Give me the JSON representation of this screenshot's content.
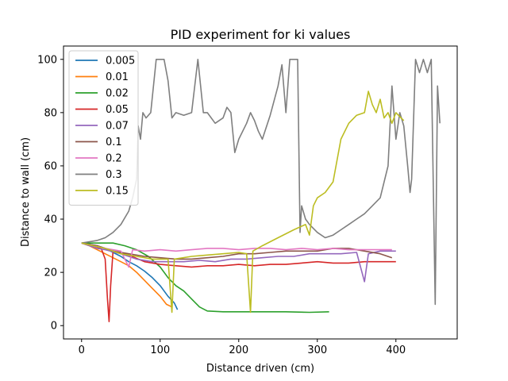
{
  "chart_data": {
    "type": "line",
    "title": "PID experiment for ki values",
    "xlabel": "Distance driven (cm)",
    "ylabel": "Distance to wall (cm)",
    "xlim": [
      -23,
      478
    ],
    "ylim": [
      -5,
      105
    ],
    "xticks": [
      0,
      100,
      200,
      300,
      400
    ],
    "yticks": [
      0,
      20,
      40,
      60,
      80,
      100
    ],
    "grid": false,
    "legend_position": "top-left",
    "series": [
      {
        "name": "0.005",
        "color": "#1f77b4",
        "points": [
          [
            0,
            31
          ],
          [
            10,
            30.5
          ],
          [
            20,
            30
          ],
          [
            30,
            29
          ],
          [
            40,
            27.5
          ],
          [
            50,
            26
          ],
          [
            60,
            24
          ],
          [
            70,
            22.5
          ],
          [
            80,
            20.5
          ],
          [
            90,
            18
          ],
          [
            100,
            15
          ],
          [
            110,
            11
          ],
          [
            118,
            8.5
          ],
          [
            122,
            6
          ]
        ]
      },
      {
        "name": "0.01",
        "color": "#ff7f0e",
        "points": [
          [
            0,
            31
          ],
          [
            10,
            30
          ],
          [
            20,
            28.5
          ],
          [
            30,
            27
          ],
          [
            40,
            25.5
          ],
          [
            50,
            24
          ],
          [
            60,
            22.5
          ],
          [
            70,
            20
          ],
          [
            80,
            17
          ],
          [
            90,
            14
          ],
          [
            100,
            11
          ],
          [
            108,
            8
          ],
          [
            115,
            7
          ]
        ]
      },
      {
        "name": "0.02",
        "color": "#2ca02c",
        "points": [
          [
            0,
            31
          ],
          [
            20,
            31
          ],
          [
            40,
            31
          ],
          [
            55,
            30
          ],
          [
            70,
            28.5
          ],
          [
            85,
            26
          ],
          [
            100,
            22
          ],
          [
            110,
            18
          ],
          [
            120,
            15
          ],
          [
            130,
            13
          ],
          [
            140,
            10
          ],
          [
            150,
            7
          ],
          [
            160,
            5.5
          ],
          [
            180,
            5.2
          ],
          [
            200,
            5.2
          ],
          [
            230,
            5.2
          ],
          [
            260,
            5.2
          ],
          [
            290,
            5
          ],
          [
            315,
            5.2
          ]
        ]
      },
      {
        "name": "0.05",
        "color": "#d62728",
        "points": [
          [
            0,
            31
          ],
          [
            15,
            30
          ],
          [
            25,
            29
          ],
          [
            30,
            25
          ],
          [
            33,
            10
          ],
          [
            35,
            1.5
          ],
          [
            37,
            15
          ],
          [
            40,
            28
          ],
          [
            60,
            26.5
          ],
          [
            80,
            24
          ],
          [
            100,
            23
          ],
          [
            120,
            22.5
          ],
          [
            140,
            22
          ],
          [
            160,
            22.5
          ],
          [
            180,
            22.5
          ],
          [
            200,
            23
          ],
          [
            220,
            22.5
          ],
          [
            240,
            23
          ],
          [
            260,
            23
          ],
          [
            280,
            23.5
          ],
          [
            300,
            24
          ],
          [
            320,
            23.5
          ],
          [
            340,
            23.5
          ],
          [
            360,
            24
          ],
          [
            380,
            24
          ],
          [
            400,
            24
          ]
        ]
      },
      {
        "name": "0.07",
        "color": "#9467bd",
        "points": [
          [
            0,
            31
          ],
          [
            10,
            30
          ],
          [
            20,
            29
          ],
          [
            30,
            28.5
          ],
          [
            50,
            27
          ],
          [
            70,
            25
          ],
          [
            90,
            24
          ],
          [
            110,
            24
          ],
          [
            130,
            24
          ],
          [
            150,
            24.5
          ],
          [
            170,
            24
          ],
          [
            190,
            25
          ],
          [
            210,
            25
          ],
          [
            230,
            25.5
          ],
          [
            250,
            26
          ],
          [
            270,
            26
          ],
          [
            290,
            27
          ],
          [
            310,
            27
          ],
          [
            330,
            27
          ],
          [
            350,
            27.5
          ],
          [
            360,
            16.5
          ],
          [
            365,
            27
          ],
          [
            380,
            28
          ],
          [
            400,
            28
          ]
        ]
      },
      {
        "name": "0.1",
        "color": "#8c564b",
        "points": [
          [
            0,
            31
          ],
          [
            20,
            30
          ],
          [
            40,
            28
          ],
          [
            60,
            27
          ],
          [
            80,
            26
          ],
          [
            100,
            25.5
          ],
          [
            120,
            25
          ],
          [
            140,
            25
          ],
          [
            160,
            25.5
          ],
          [
            180,
            26
          ],
          [
            200,
            27
          ],
          [
            220,
            27
          ],
          [
            240,
            27.5
          ],
          [
            260,
            28
          ],
          [
            280,
            28
          ],
          [
            300,
            28
          ],
          [
            320,
            29
          ],
          [
            340,
            29
          ],
          [
            360,
            28
          ],
          [
            380,
            27
          ],
          [
            395,
            25.5
          ]
        ]
      },
      {
        "name": "0.2",
        "color": "#e377c2",
        "points": [
          [
            0,
            31
          ],
          [
            15,
            30
          ],
          [
            30,
            29
          ],
          [
            50,
            28
          ],
          [
            60,
            22
          ],
          [
            65,
            28.5
          ],
          [
            80,
            28
          ],
          [
            100,
            28.5
          ],
          [
            120,
            28
          ],
          [
            140,
            28.5
          ],
          [
            160,
            29
          ],
          [
            180,
            29
          ],
          [
            200,
            28.5
          ],
          [
            220,
            29
          ],
          [
            240,
            29
          ],
          [
            260,
            28.5
          ],
          [
            280,
            29
          ],
          [
            300,
            28.5
          ],
          [
            320,
            29
          ],
          [
            340,
            28.5
          ],
          [
            360,
            28.5
          ],
          [
            380,
            28.5
          ],
          [
            395,
            28.5
          ]
        ]
      },
      {
        "name": "0.3",
        "color": "#7f7f7f",
        "points": [
          [
            0,
            31
          ],
          [
            10,
            31.5
          ],
          [
            20,
            32
          ],
          [
            30,
            33
          ],
          [
            40,
            35
          ],
          [
            50,
            38
          ],
          [
            60,
            43
          ],
          [
            65,
            48
          ],
          [
            70,
            55
          ],
          [
            72,
            75
          ],
          [
            75,
            70
          ],
          [
            78,
            80
          ],
          [
            82,
            78
          ],
          [
            88,
            80
          ],
          [
            95,
            100
          ],
          [
            105,
            100
          ],
          [
            110,
            92
          ],
          [
            115,
            78
          ],
          [
            120,
            80
          ],
          [
            130,
            79
          ],
          [
            140,
            80
          ],
          [
            148,
            100
          ],
          [
            155,
            80
          ],
          [
            160,
            80
          ],
          [
            170,
            76
          ],
          [
            180,
            78
          ],
          [
            185,
            82
          ],
          [
            190,
            80
          ],
          [
            195,
            65
          ],
          [
            200,
            70
          ],
          [
            210,
            76
          ],
          [
            215,
            80
          ],
          [
            220,
            77
          ],
          [
            225,
            73
          ],
          [
            230,
            70
          ],
          [
            240,
            79
          ],
          [
            250,
            90
          ],
          [
            255,
            98
          ],
          [
            260,
            80
          ],
          [
            265,
            100
          ],
          [
            275,
            100
          ],
          [
            278,
            35
          ],
          [
            280,
            45
          ],
          [
            285,
            40
          ],
          [
            290,
            38
          ],
          [
            300,
            35
          ],
          [
            310,
            33
          ],
          [
            320,
            34
          ],
          [
            330,
            36
          ],
          [
            340,
            38
          ],
          [
            350,
            40
          ],
          [
            360,
            42
          ],
          [
            370,
            45
          ],
          [
            380,
            48
          ],
          [
            390,
            60
          ],
          [
            395,
            90
          ],
          [
            400,
            70
          ],
          [
            405,
            80
          ],
          [
            410,
            75
          ],
          [
            415,
            60
          ],
          [
            418,
            50
          ],
          [
            420,
            55
          ],
          [
            425,
            100
          ],
          [
            430,
            95
          ],
          [
            435,
            100
          ],
          [
            440,
            95
          ],
          [
            445,
            100
          ],
          [
            450,
            8
          ],
          [
            453,
            90
          ],
          [
            456,
            76
          ]
        ]
      },
      {
        "name": "0.15",
        "color": "#bcbd22",
        "points": [
          [
            0,
            31
          ],
          [
            15,
            30
          ],
          [
            30,
            29
          ],
          [
            50,
            27
          ],
          [
            70,
            26
          ],
          [
            90,
            25
          ],
          [
            110,
            25
          ],
          [
            115,
            5
          ],
          [
            118,
            25
          ],
          [
            140,
            26
          ],
          [
            160,
            26.5
          ],
          [
            180,
            27
          ],
          [
            200,
            27.5
          ],
          [
            210,
            27
          ],
          [
            215,
            5
          ],
          [
            218,
            28
          ],
          [
            230,
            30
          ],
          [
            250,
            33
          ],
          [
            270,
            36
          ],
          [
            285,
            38
          ],
          [
            290,
            34
          ],
          [
            295,
            45
          ],
          [
            300,
            48
          ],
          [
            310,
            50
          ],
          [
            320,
            54
          ],
          [
            330,
            70
          ],
          [
            340,
            76
          ],
          [
            350,
            79
          ],
          [
            360,
            80
          ],
          [
            365,
            88
          ],
          [
            370,
            83
          ],
          [
            375,
            80
          ],
          [
            380,
            85
          ],
          [
            385,
            78
          ],
          [
            390,
            80
          ],
          [
            395,
            76
          ],
          [
            400,
            80
          ],
          [
            410,
            77
          ]
        ]
      }
    ]
  }
}
